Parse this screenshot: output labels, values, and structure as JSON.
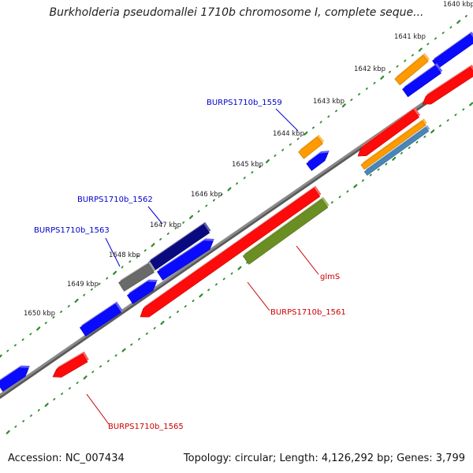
{
  "title": "Burkholderia pseudomallei 1710b chromosome I, complete seque...",
  "footer": {
    "accession": "Accession: NC_007434",
    "topology": "Topology: circular; Length: 4,126,292 bp; Genes: 3,799"
  },
  "ticks": [
    "1640 kbp",
    "1641 kbp",
    "1642 kbp",
    "1643 kbp",
    "1644 kbp",
    "1645 kbp",
    "1646 kbp",
    "1647 kbp",
    "1648 kbp",
    "1649 kbp",
    "1650 kbp"
  ],
  "gene_labels": [
    {
      "text": "BURPS1710b_1559",
      "color": "#0000cc"
    },
    {
      "text": "BURPS1710b_1562",
      "color": "#0000cc"
    },
    {
      "text": "BURPS1710b_1563",
      "color": "#0000cc"
    },
    {
      "text": "glmS",
      "color": "#cc0000"
    },
    {
      "text": "BURPS1710b_1561",
      "color": "#cc0000"
    },
    {
      "text": "BURPS1710b_1565",
      "color": "#cc0000"
    }
  ],
  "colors": {
    "backbone": "#8a8a8a",
    "tick_dots": "#2e8b2e",
    "forward_cds": "#0a0aff",
    "reverse_cds": "#ff0a0a",
    "navy_cds": "#0a0a80",
    "gray_cds": "#6a6a6a",
    "orange_feature": "#ff9a00",
    "olive_feature": "#6b8e23",
    "steel_feature": "#4a86b8",
    "label_blue": "#0000cc",
    "label_red": "#cc0000"
  }
}
